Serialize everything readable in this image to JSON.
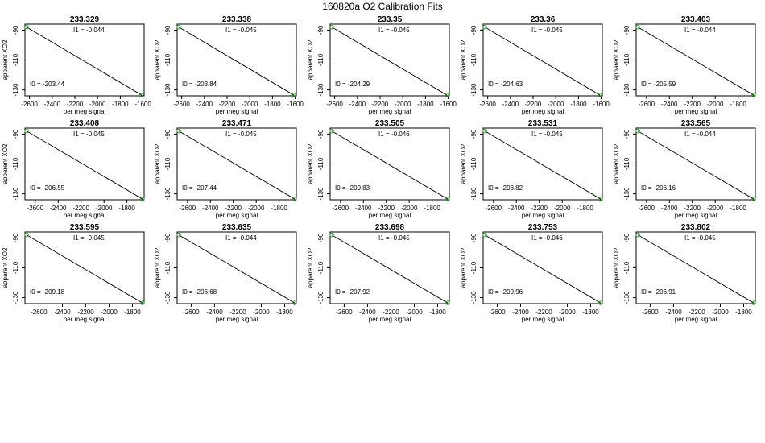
{
  "page": {
    "title": "160820a   O2 Calibration Fits"
  },
  "colors": {
    "line": "#000000",
    "points": "#22aa22",
    "frame": "#000000",
    "background": "#ffffff"
  },
  "chart_data": [
    {
      "type": "scatter",
      "title": "233.329",
      "xlabel": "per meg signal",
      "ylabel": "apparent XO2",
      "xlim": [
        -2640,
        -1590
      ],
      "ylim": [
        -134,
        -86
      ],
      "xticks": [
        -2600,
        -2400,
        -2200,
        -2000,
        -1800,
        -1600
      ],
      "yticks": [
        -90,
        -110,
        -130
      ],
      "points": [
        {
          "x": -2625,
          "y": -88
        },
        {
          "x": -1612,
          "y": -133.5
        }
      ],
      "fit": {
        "I1_label": "I1 =",
        "I1": "-0.044",
        "I0_label": "I0 =",
        "I0": "-203.44"
      }
    },
    {
      "type": "scatter",
      "title": "233.338",
      "xlabel": "per meg signal",
      "ylabel": "apparent XO2",
      "xlim": [
        -2640,
        -1590
      ],
      "ylim": [
        -134,
        -86
      ],
      "xticks": [
        -2600,
        -2400,
        -2200,
        -2000,
        -1800,
        -1600
      ],
      "yticks": [
        -90,
        -110,
        -130
      ],
      "points": [
        {
          "x": -2625,
          "y": -88
        },
        {
          "x": -1612,
          "y": -133.5
        }
      ],
      "fit": {
        "I1_label": "I1 =",
        "I1": "-0.045",
        "I0_label": "I0 =",
        "I0": "-203.84"
      }
    },
    {
      "type": "scatter",
      "title": "233.35",
      "xlabel": "per meg signal",
      "ylabel": "apparent XO2",
      "xlim": [
        -2640,
        -1590
      ],
      "ylim": [
        -134,
        -86
      ],
      "xticks": [
        -2600,
        -2400,
        -2200,
        -2000,
        -1800,
        -1600
      ],
      "yticks": [
        -90,
        -110,
        -130
      ],
      "points": [
        {
          "x": -2625,
          "y": -88
        },
        {
          "x": -1612,
          "y": -133.5
        }
      ],
      "fit": {
        "I1_label": "I1 =",
        "I1": "-0.045",
        "I0_label": "I0 =",
        "I0": "-204.29"
      }
    },
    {
      "type": "scatter",
      "title": "233.36",
      "xlabel": "per meg signal",
      "ylabel": "apparent XO2",
      "xlim": [
        -2640,
        -1590
      ],
      "ylim": [
        -134,
        -86
      ],
      "xticks": [
        -2600,
        -2400,
        -2200,
        -2000,
        -1800,
        -1600
      ],
      "yticks": [
        -90,
        -110,
        -130
      ],
      "points": [
        {
          "x": -2625,
          "y": -88
        },
        {
          "x": -1612,
          "y": -133.5
        }
      ],
      "fit": {
        "I1_label": "I1 =",
        "I1": "-0.045",
        "I0_label": "I0 =",
        "I0": "-204.63"
      }
    },
    {
      "type": "scatter",
      "title": "233.403",
      "xlabel": "per meg signal",
      "ylabel": "apparent XO2",
      "xlim": [
        -2690,
        -1650
      ],
      "ylim": [
        -134,
        -86
      ],
      "xticks": [
        -2600,
        -2400,
        -2200,
        -2000,
        -1800
      ],
      "yticks": [
        -90,
        -110,
        -130
      ],
      "points": [
        {
          "x": -2675,
          "y": -88
        },
        {
          "x": -1665,
          "y": -133.5
        }
      ],
      "fit": {
        "I1_label": "I1 =",
        "I1": "-0.044",
        "I0_label": "I0 =",
        "I0": "-205.59"
      }
    },
    {
      "type": "scatter",
      "title": "233.408",
      "xlabel": "per meg signal",
      "ylabel": "apparent XO2",
      "xlim": [
        -2690,
        -1650
      ],
      "ylim": [
        -134,
        -86
      ],
      "xticks": [
        -2600,
        -2400,
        -2200,
        -2000,
        -1800
      ],
      "yticks": [
        -90,
        -110,
        -130
      ],
      "points": [
        {
          "x": -2675,
          "y": -88
        },
        {
          "x": -1665,
          "y": -133.5
        }
      ],
      "fit": {
        "I1_label": "I1 =",
        "I1": "-0.045",
        "I0_label": "I0 =",
        "I0": "-206.55"
      }
    },
    {
      "type": "scatter",
      "title": "233.471",
      "xlabel": "per meg signal",
      "ylabel": "apparent XO2",
      "xlim": [
        -2690,
        -1650
      ],
      "ylim": [
        -134,
        -86
      ],
      "xticks": [
        -2600,
        -2400,
        -2200,
        -2000,
        -1800
      ],
      "yticks": [
        -90,
        -110,
        -130
      ],
      "points": [
        {
          "x": -2675,
          "y": -88
        },
        {
          "x": -1665,
          "y": -133.5
        }
      ],
      "fit": {
        "I1_label": "I1 =",
        "I1": "-0.045",
        "I0_label": "I0 =",
        "I0": "-207.44"
      }
    },
    {
      "type": "scatter",
      "title": "233.505",
      "xlabel": "per meg signal",
      "ylabel": "apparent XO2",
      "xlim": [
        -2690,
        -1650
      ],
      "ylim": [
        -134,
        -86
      ],
      "xticks": [
        -2600,
        -2400,
        -2200,
        -2000,
        -1800
      ],
      "yticks": [
        -90,
        -110,
        -130
      ],
      "points": [
        {
          "x": -2675,
          "y": -88
        },
        {
          "x": -1665,
          "y": -133.5
        }
      ],
      "fit": {
        "I1_label": "I1 =",
        "I1": "-0.046",
        "I0_label": "I0 =",
        "I0": "-209.83"
      }
    },
    {
      "type": "scatter",
      "title": "233.531",
      "xlabel": "per meg signal",
      "ylabel": "apparent XO2",
      "xlim": [
        -2690,
        -1650
      ],
      "ylim": [
        -134,
        -86
      ],
      "xticks": [
        -2600,
        -2400,
        -2200,
        -2000,
        -1800
      ],
      "yticks": [
        -90,
        -110,
        -130
      ],
      "points": [
        {
          "x": -2675,
          "y": -88
        },
        {
          "x": -1665,
          "y": -133.5
        }
      ],
      "fit": {
        "I1_label": "I1 =",
        "I1": "-0.045",
        "I0_label": "I0 =",
        "I0": "-206.82"
      }
    },
    {
      "type": "scatter",
      "title": "233.565",
      "xlabel": "per meg signal",
      "ylabel": "apparent XO2",
      "xlim": [
        -2690,
        -1650
      ],
      "ylim": [
        -134,
        -86
      ],
      "xticks": [
        -2600,
        -2400,
        -2200,
        -2000,
        -1800
      ],
      "yticks": [
        -90,
        -110,
        -130
      ],
      "points": [
        {
          "x": -2675,
          "y": -88
        },
        {
          "x": -1665,
          "y": -133.5
        }
      ],
      "fit": {
        "I1_label": "I1 =",
        "I1": "-0.044",
        "I0_label": "I0 =",
        "I0": "-206.16"
      }
    },
    {
      "type": "scatter",
      "title": "233.595",
      "xlabel": "per meg signal",
      "ylabel": "apparent XO2",
      "xlim": [
        -2720,
        -1700
      ],
      "ylim": [
        -134,
        -86
      ],
      "xticks": [
        -2600,
        -2400,
        -2200,
        -2000,
        -1800
      ],
      "yticks": [
        -90,
        -110,
        -130
      ],
      "points": [
        {
          "x": -2705,
          "y": -88
        },
        {
          "x": -1715,
          "y": -133.5
        }
      ],
      "fit": {
        "I1_label": "I1 =",
        "I1": "-0.045",
        "I0_label": "I0 =",
        "I0": "-209.18"
      }
    },
    {
      "type": "scatter",
      "title": "233.635",
      "xlabel": "per meg signal",
      "ylabel": "apparent XO2",
      "xlim": [
        -2720,
        -1700
      ],
      "ylim": [
        -134,
        -86
      ],
      "xticks": [
        -2600,
        -2400,
        -2200,
        -2000,
        -1800
      ],
      "yticks": [
        -90,
        -110,
        -130
      ],
      "points": [
        {
          "x": -2705,
          "y": -88
        },
        {
          "x": -1715,
          "y": -133.5
        }
      ],
      "fit": {
        "I1_label": "I1 =",
        "I1": "-0.044",
        "I0_label": "I0 =",
        "I0": "-206.68"
      }
    },
    {
      "type": "scatter",
      "title": "233.698",
      "xlabel": "per meg signal",
      "ylabel": "apparent XO2",
      "xlim": [
        -2720,
        -1700
      ],
      "ylim": [
        -134,
        -86
      ],
      "xticks": [
        -2600,
        -2400,
        -2200,
        -2000,
        -1800
      ],
      "yticks": [
        -90,
        -110,
        -130
      ],
      "points": [
        {
          "x": -2705,
          "y": -88
        },
        {
          "x": -1715,
          "y": -133.5
        }
      ],
      "fit": {
        "I1_label": "I1 =",
        "I1": "-0.045",
        "I0_label": "I0 =",
        "I0": "-207.92"
      }
    },
    {
      "type": "scatter",
      "title": "233.753",
      "xlabel": "per meg signal",
      "ylabel": "apparent XO2",
      "xlim": [
        -2720,
        -1700
      ],
      "ylim": [
        -134,
        -86
      ],
      "xticks": [
        -2600,
        -2400,
        -2200,
        -2000,
        -1800
      ],
      "yticks": [
        -90,
        -110,
        -130
      ],
      "points": [
        {
          "x": -2705,
          "y": -88
        },
        {
          "x": -1715,
          "y": -133.5
        }
      ],
      "fit": {
        "I1_label": "I1 =",
        "I1": "-0.046",
        "I0_label": "I0 =",
        "I0": "-209.96"
      }
    },
    {
      "type": "scatter",
      "title": "233.802",
      "xlabel": "per meg signal",
      "ylabel": "apparent XO2",
      "xlim": [
        -2720,
        -1700
      ],
      "ylim": [
        -134,
        -86
      ],
      "xticks": [
        -2600,
        -2400,
        -2200,
        -2000,
        -1800
      ],
      "yticks": [
        -90,
        -110,
        -130
      ],
      "points": [
        {
          "x": -2705,
          "y": -88
        },
        {
          "x": -1715,
          "y": -133.5
        }
      ],
      "fit": {
        "I1_label": "I1 =",
        "I1": "-0.045",
        "I0_label": "I0 =",
        "I0": "-206.91"
      }
    }
  ]
}
